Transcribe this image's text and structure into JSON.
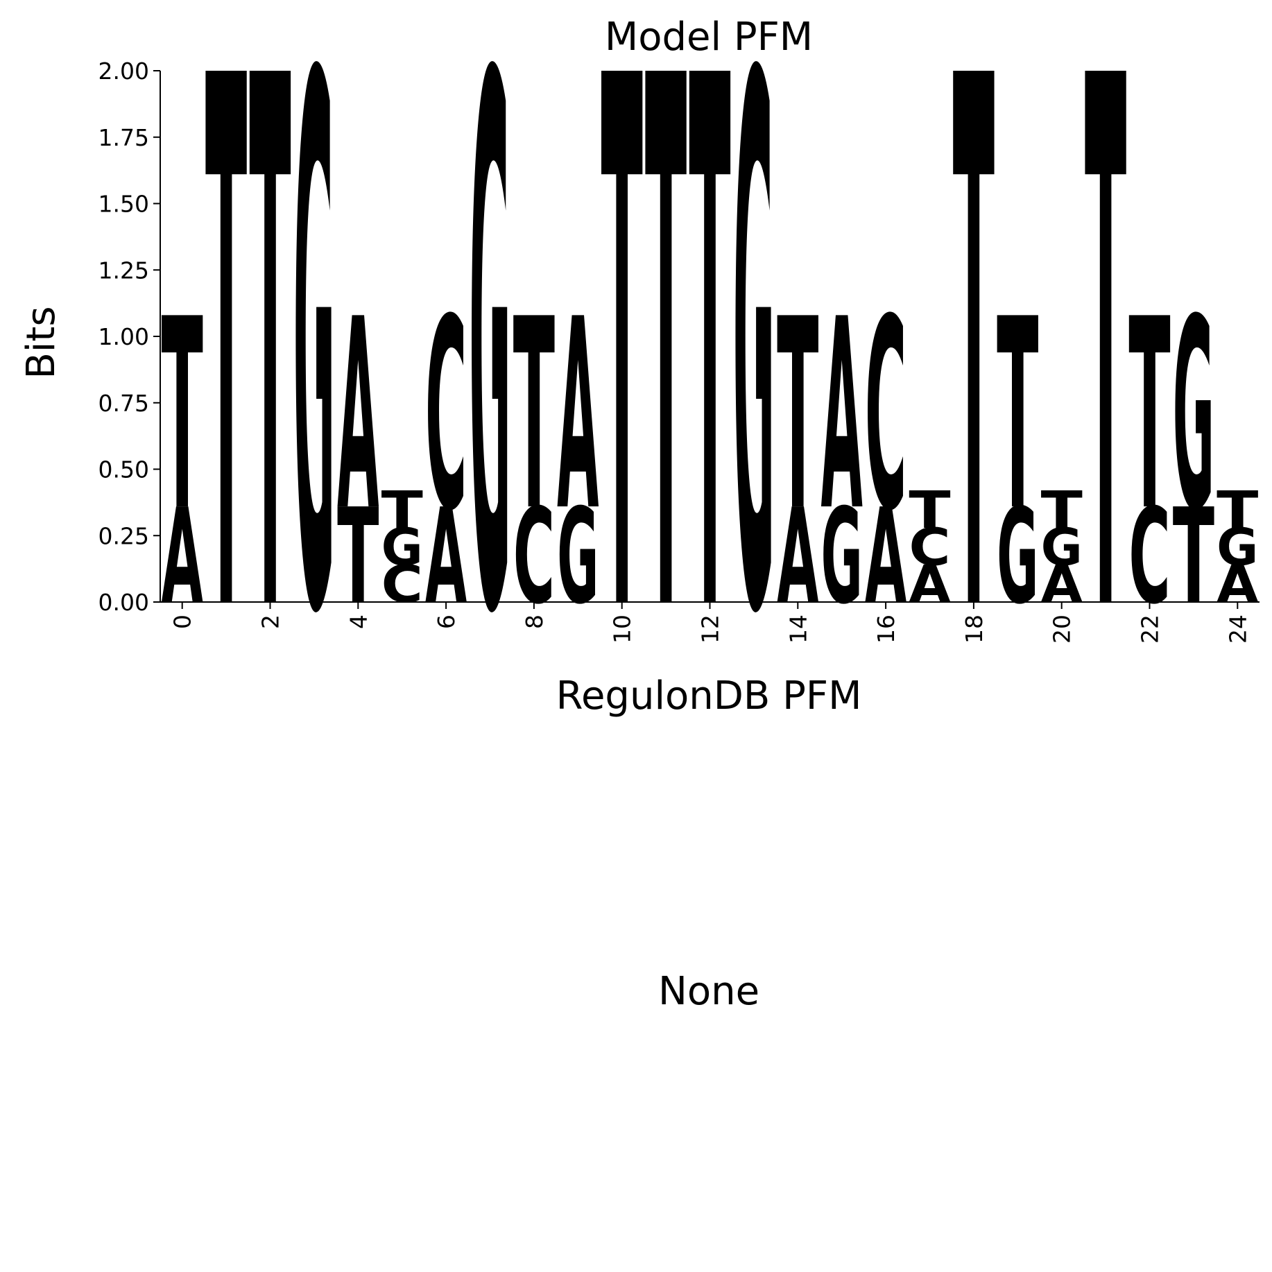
{
  "chart_data": [
    {
      "type": "logo",
      "title": "Model PFM",
      "xlabel": "RegulonDB PFM",
      "ylabel": "Bits",
      "x": [
        0,
        1,
        2,
        3,
        4,
        5,
        6,
        7,
        8,
        9,
        10,
        11,
        12,
        13,
        14,
        15,
        16,
        17,
        18,
        19,
        20,
        21,
        22,
        23,
        24
      ],
      "series": [
        {
          "name": "A",
          "color": "#ff0000",
          "values": [
            0.36,
            0,
            0,
            0,
            0.72,
            0,
            0.36,
            0,
            0,
            0.72,
            0,
            0,
            0,
            0,
            0.36,
            0.72,
            0.36,
            0.14,
            0,
            0,
            0.14,
            0,
            0,
            0,
            0.14
          ]
        },
        {
          "name": "C",
          "color": "#0000ff",
          "values": [
            0,
            0,
            0,
            0,
            0,
            0.14,
            0.72,
            0,
            0.36,
            0,
            0,
            0,
            0,
            0,
            0,
            0,
            0.72,
            0.14,
            0,
            0,
            0,
            0,
            0.36,
            0,
            0
          ]
        },
        {
          "name": "G",
          "color": "#ffa500",
          "values": [
            0,
            0,
            0,
            2.0,
            0,
            0.14,
            0,
            2.0,
            0,
            0.36,
            0,
            0,
            0,
            2.0,
            0,
            0.36,
            0,
            0,
            0,
            0.36,
            0.14,
            0,
            0,
            0.72,
            0.14
          ]
        },
        {
          "name": "T",
          "color": "#008000",
          "values": [
            0.72,
            2.0,
            2.0,
            0,
            0.36,
            0.14,
            0,
            0,
            0.72,
            0,
            2.0,
            2.0,
            2.0,
            0,
            0.72,
            0,
            0,
            0.14,
            2.0,
            0.72,
            0.14,
            2.0,
            0.72,
            0.36,
            0.14
          ]
        }
      ],
      "xlim": [
        -0.5,
        24.5
      ],
      "xticks": [
        0,
        2,
        4,
        6,
        8,
        10,
        12,
        14,
        16,
        18,
        20,
        22,
        24
      ],
      "ylim": [
        0,
        2.0
      ],
      "yticks": [
        {
          "value": 0,
          "label": "0.00"
        },
        {
          "value": 0.25,
          "label": "0.25"
        },
        {
          "value": 0.5,
          "label": "0.50"
        },
        {
          "value": 0.75,
          "label": "0.75"
        },
        {
          "value": 1.0,
          "label": "1.00"
        },
        {
          "value": 1.25,
          "label": "1.25"
        },
        {
          "value": 1.5,
          "label": "1.50"
        },
        {
          "value": 1.75,
          "label": "1.75"
        },
        {
          "value": 2.0,
          "label": "2.00"
        }
      ]
    },
    {
      "type": "text",
      "title": "None"
    }
  ]
}
